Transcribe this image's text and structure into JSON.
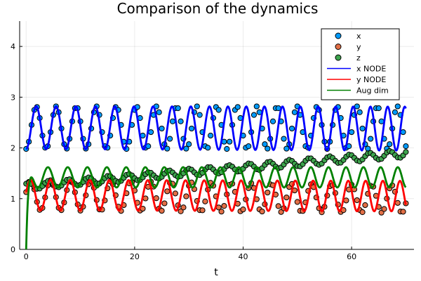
{
  "chart_data": {
    "type": "scatter",
    "title": "Comparison of the dynamics",
    "xlabel": "t",
    "ylabel": "",
    "xlim": [
      -1.2,
      71.5
    ],
    "ylim": [
      0,
      4.5
    ],
    "xticks": [
      0,
      20,
      40,
      60
    ],
    "yticks": [
      0,
      1,
      2,
      3,
      4
    ],
    "grid": true,
    "legend_position": "top-right",
    "t_end": 70,
    "n_points": 140,
    "series": [
      {
        "name": "x",
        "kind": "scatter",
        "color": "#009AFA",
        "base": 2.4,
        "amp": 0.42,
        "amp_growth": 0.0,
        "drift": 0.0,
        "period": 3.7,
        "phase": -1.5708
      },
      {
        "name": "y",
        "kind": "scatter",
        "color": "#E26F46",
        "base": 1.07,
        "amp": 0.3,
        "amp_growth": -0.1,
        "drift": -0.08,
        "period": 3.7,
        "phase": 0.2
      },
      {
        "name": "z",
        "kind": "scatter",
        "color": "#3DA44D",
        "base": 1.24,
        "amp": 0.07,
        "amp_growth": 0.1,
        "drift": 0.65,
        "period": 3.7,
        "phase": 0.9
      },
      {
        "name": "x NODE",
        "kind": "line",
        "color": "#0000FF",
        "base": 2.4,
        "amp": 0.42,
        "amp_growth": 0.03,
        "drift": -0.02,
        "period": 3.7,
        "phase": -1.5708,
        "period_drift": -0.08
      },
      {
        "name": "y NODE",
        "kind": "line",
        "color": "#FF0000",
        "base": 1.07,
        "amp": 0.3,
        "amp_growth": 0.0,
        "drift": -0.02,
        "period": 3.7,
        "phase": 0.2,
        "period_drift": -0.08
      },
      {
        "name": "Aug dim",
        "kind": "line",
        "color": "#008000",
        "base": 1.42,
        "amp": 0.2,
        "amp_growth": 0.0,
        "drift": 0.0,
        "period": 3.7,
        "phase": 1.0,
        "period_drift": -0.08,
        "start_value": 0.0
      }
    ],
    "background_color": "#FFFFFF",
    "marker_outline_color": "#000000"
  }
}
